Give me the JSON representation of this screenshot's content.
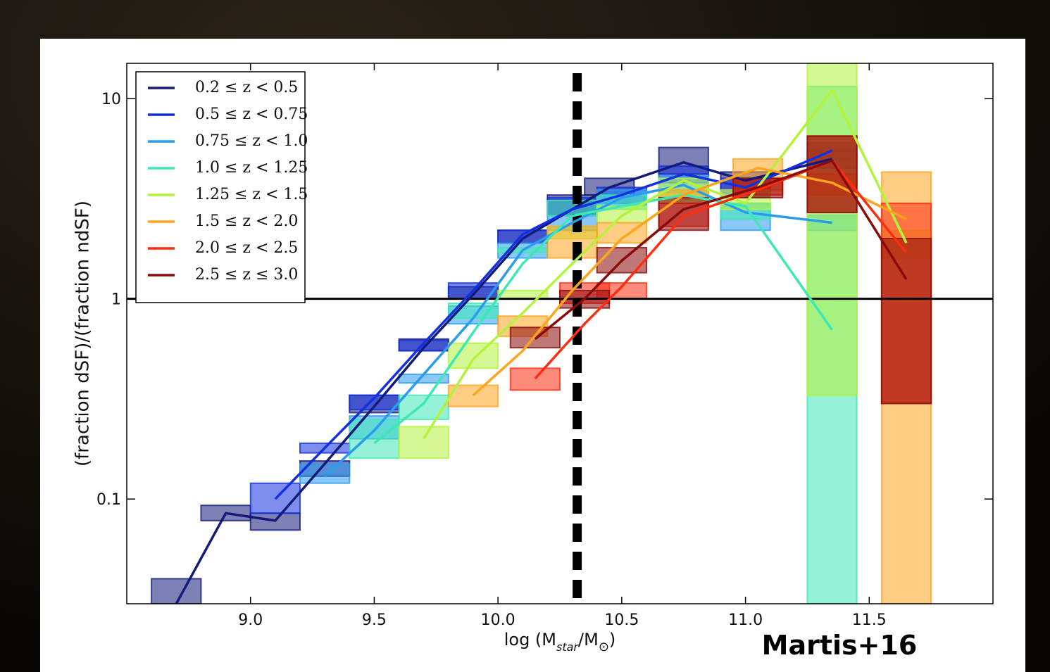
{
  "chart_data": {
    "type": "line",
    "xlabel": [
      "log (M",
      "star",
      "/M",
      "⊙",
      ")"
    ],
    "ylabel": "(fraction dSF)/(fraction ndSF)",
    "annotation": "Martis+16",
    "xlim": [
      8.5,
      12.0
    ],
    "ylim": [
      0.03,
      15
    ],
    "log_y": true,
    "xticks": [
      {
        "value": 9.0,
        "label": "9.0"
      },
      9.5,
      {
        "value": 10.0,
        "label": "10.0"
      },
      10.5,
      {
        "value": 11.0,
        "label": "11.0"
      },
      11.5
    ],
    "yticks": [
      0.1,
      1,
      10
    ],
    "hline": 1,
    "vline": 10.32,
    "bin_width": 0.2,
    "legend": "upper left",
    "series": [
      {
        "name": "0.2 ≤ z < 0.5",
        "color": "#141a7a",
        "x": [
          8.7,
          8.9,
          9.1,
          9.3,
          9.5,
          9.7,
          9.9,
          10.1,
          10.3,
          10.45,
          10.75,
          11.0,
          11.35
        ],
        "values": [
          0.03,
          0.085,
          0.078,
          0.15,
          0.29,
          0.57,
          1.05,
          2.0,
          2.8,
          3.6,
          4.8,
          3.9,
          5.0
        ],
        "lower": [
          0.03,
          0.078,
          0.07,
          0.13,
          0.27,
          0.55,
          1.0,
          1.9,
          2.6,
          3.3,
          4.2,
          3.5,
          4.5
        ],
        "upper": [
          0.04,
          0.093,
          0.085,
          0.155,
          0.33,
          0.63,
          1.15,
          2.2,
          3.3,
          4.0,
          5.7,
          4.3,
          5.5
        ]
      },
      {
        "name": "0.5 ≤ z < 0.75",
        "color": "#1230e0",
        "x": [
          9.1,
          9.3,
          9.5,
          9.7,
          9.9,
          10.1,
          10.3,
          10.5,
          10.75,
          11.0,
          11.35
        ],
        "values": [
          0.1,
          0.18,
          0.32,
          0.6,
          1.1,
          2.1,
          2.8,
          3.3,
          4.2,
          3.6,
          5.5
        ],
        "lower": [
          0.085,
          0.17,
          0.28,
          0.55,
          1.0,
          1.9,
          2.6,
          3.0,
          3.8,
          3.2,
          5.0
        ],
        "upper": [
          0.12,
          0.19,
          0.33,
          0.62,
          1.2,
          2.2,
          3.2,
          3.6,
          4.6,
          4.0,
          6.0
        ]
      },
      {
        "name": "0.75 ≤ z < 1.0",
        "color": "#2a9cf0",
        "x": [
          9.3,
          9.5,
          9.7,
          9.9,
          10.1,
          10.3,
          10.5,
          10.75,
          11.0,
          11.35
        ],
        "values": [
          0.13,
          0.22,
          0.42,
          0.8,
          1.75,
          2.4,
          3.2,
          3.7,
          2.7,
          2.4
        ],
        "lower": [
          0.12,
          0.2,
          0.38,
          0.75,
          1.6,
          2.2,
          2.9,
          3.4,
          2.2,
          2.2
        ],
        "upper": [
          0.15,
          0.26,
          0.42,
          0.92,
          1.9,
          2.6,
          3.5,
          4.1,
          3.0,
          2.6
        ]
      },
      {
        "name": "1.0 ≤ z < 1.25",
        "color": "#3ee8b4",
        "x": [
          9.5,
          9.7,
          9.9,
          10.1,
          10.3,
          10.5,
          10.75,
          11.0,
          11.35
        ],
        "values": [
          0.19,
          0.3,
          0.68,
          1.5,
          2.6,
          2.9,
          3.3,
          2.9,
          0.7
        ],
        "lower": [
          0.16,
          0.25,
          0.8,
          1.7,
          2.6,
          2.8,
          3.0,
          2.5,
          0.03
        ],
        "upper": [
          0.25,
          0.33,
          0.95,
          1.8,
          3.1,
          3.3,
          3.4,
          3.0,
          11.5
        ]
      },
      {
        "name": "1.25 ≤ z < 1.5",
        "color": "#b4f23c",
        "x": [
          9.7,
          9.9,
          10.1,
          10.3,
          10.5,
          10.75,
          11.0,
          11.35,
          11.65
        ],
        "values": [
          0.2,
          0.5,
          0.85,
          1.5,
          2.6,
          3.9,
          3.0,
          11,
          1.9
        ],
        "lower": [
          0.16,
          0.45,
          1.0,
          2.0,
          2.4,
          3.3,
          2.8,
          0.33,
          1.6
        ],
        "upper": [
          0.23,
          0.6,
          1.1,
          2.3,
          2.9,
          4.0,
          3.5,
          15,
          2.2
        ]
      },
      {
        "name": "1.5 ≤ z < 2.0",
        "color": "#ffa41e",
        "x": [
          9.9,
          10.1,
          10.3,
          10.5,
          10.75,
          11.05,
          11.35,
          11.65
        ],
        "values": [
          0.33,
          0.55,
          1.1,
          2.0,
          3.3,
          4.5,
          3.8,
          2.5
        ],
        "lower": [
          0.29,
          0.65,
          1.6,
          1.9,
          3.0,
          3.5,
          3.3,
          0.03
        ],
        "upper": [
          0.37,
          0.82,
          2.3,
          2.4,
          3.5,
          5.0,
          4.2,
          4.3
        ]
      },
      {
        "name": "2.0 ≤ z < 2.5",
        "color": "#ff2c10",
        "x": [
          10.15,
          10.35,
          10.5,
          10.75,
          11.05,
          11.35,
          11.65
        ],
        "values": [
          0.4,
          0.75,
          1.15,
          2.6,
          3.5,
          4.9,
          1.7
        ],
        "lower": [
          0.35,
          0.95,
          1.0,
          2.3,
          3.3,
          2.7,
          0.3
        ],
        "upper": [
          0.45,
          1.2,
          1.2,
          3.0,
          4.0,
          6.5,
          3.0
        ]
      },
      {
        "name": "2.5 ≤ z ≤ 3.0",
        "color": "#8a0a0a",
        "x": [
          10.15,
          10.35,
          10.5,
          10.75,
          11.05,
          11.35,
          11.65
        ],
        "values": [
          0.63,
          1.0,
          1.55,
          2.8,
          3.6,
          4.9,
          1.25
        ],
        "lower": [
          0.57,
          0.9,
          1.35,
          2.2,
          3.2,
          2.7,
          0.3
        ],
        "upper": [
          0.72,
          1.1,
          1.8,
          3.2,
          4.0,
          6.5,
          2.0
        ]
      }
    ]
  }
}
